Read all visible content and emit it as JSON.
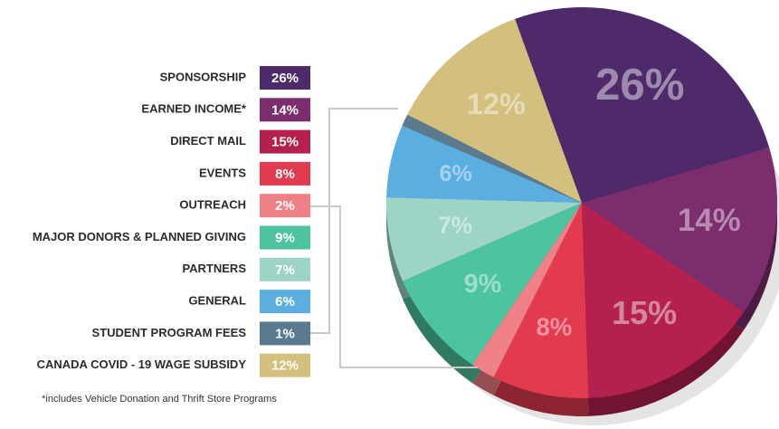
{
  "chart_data": {
    "type": "pie",
    "categories": [
      "SPONSORSHIP",
      "EARNED INCOME*",
      "DIRECT MAIL",
      "EVENTS",
      "OUTREACH",
      "MAJOR DONORS & PLANNED GIVING",
      "PARTNERS",
      "GENERAL",
      "STUDENT PROGRAM FEES",
      "CANADA COVID - 19 WAGE SUBSIDY"
    ],
    "values": [
      26,
      14,
      15,
      8,
      2,
      9,
      7,
      6,
      1,
      12
    ],
    "value_labels": [
      "26%",
      "14%",
      "15%",
      "8%",
      "2%",
      "9%",
      "7%",
      "6%",
      "1%",
      "12%"
    ],
    "colors": [
      "#4f2a6b",
      "#7b2d6e",
      "#b5214f",
      "#e23a4f",
      "#f08088",
      "#4ec3a0",
      "#9ed3c8",
      "#5aaee0",
      "#5a7a90",
      "#d4c07e"
    ],
    "footnote": "*includes Vehicle Donation and Thrift Store Programs"
  }
}
